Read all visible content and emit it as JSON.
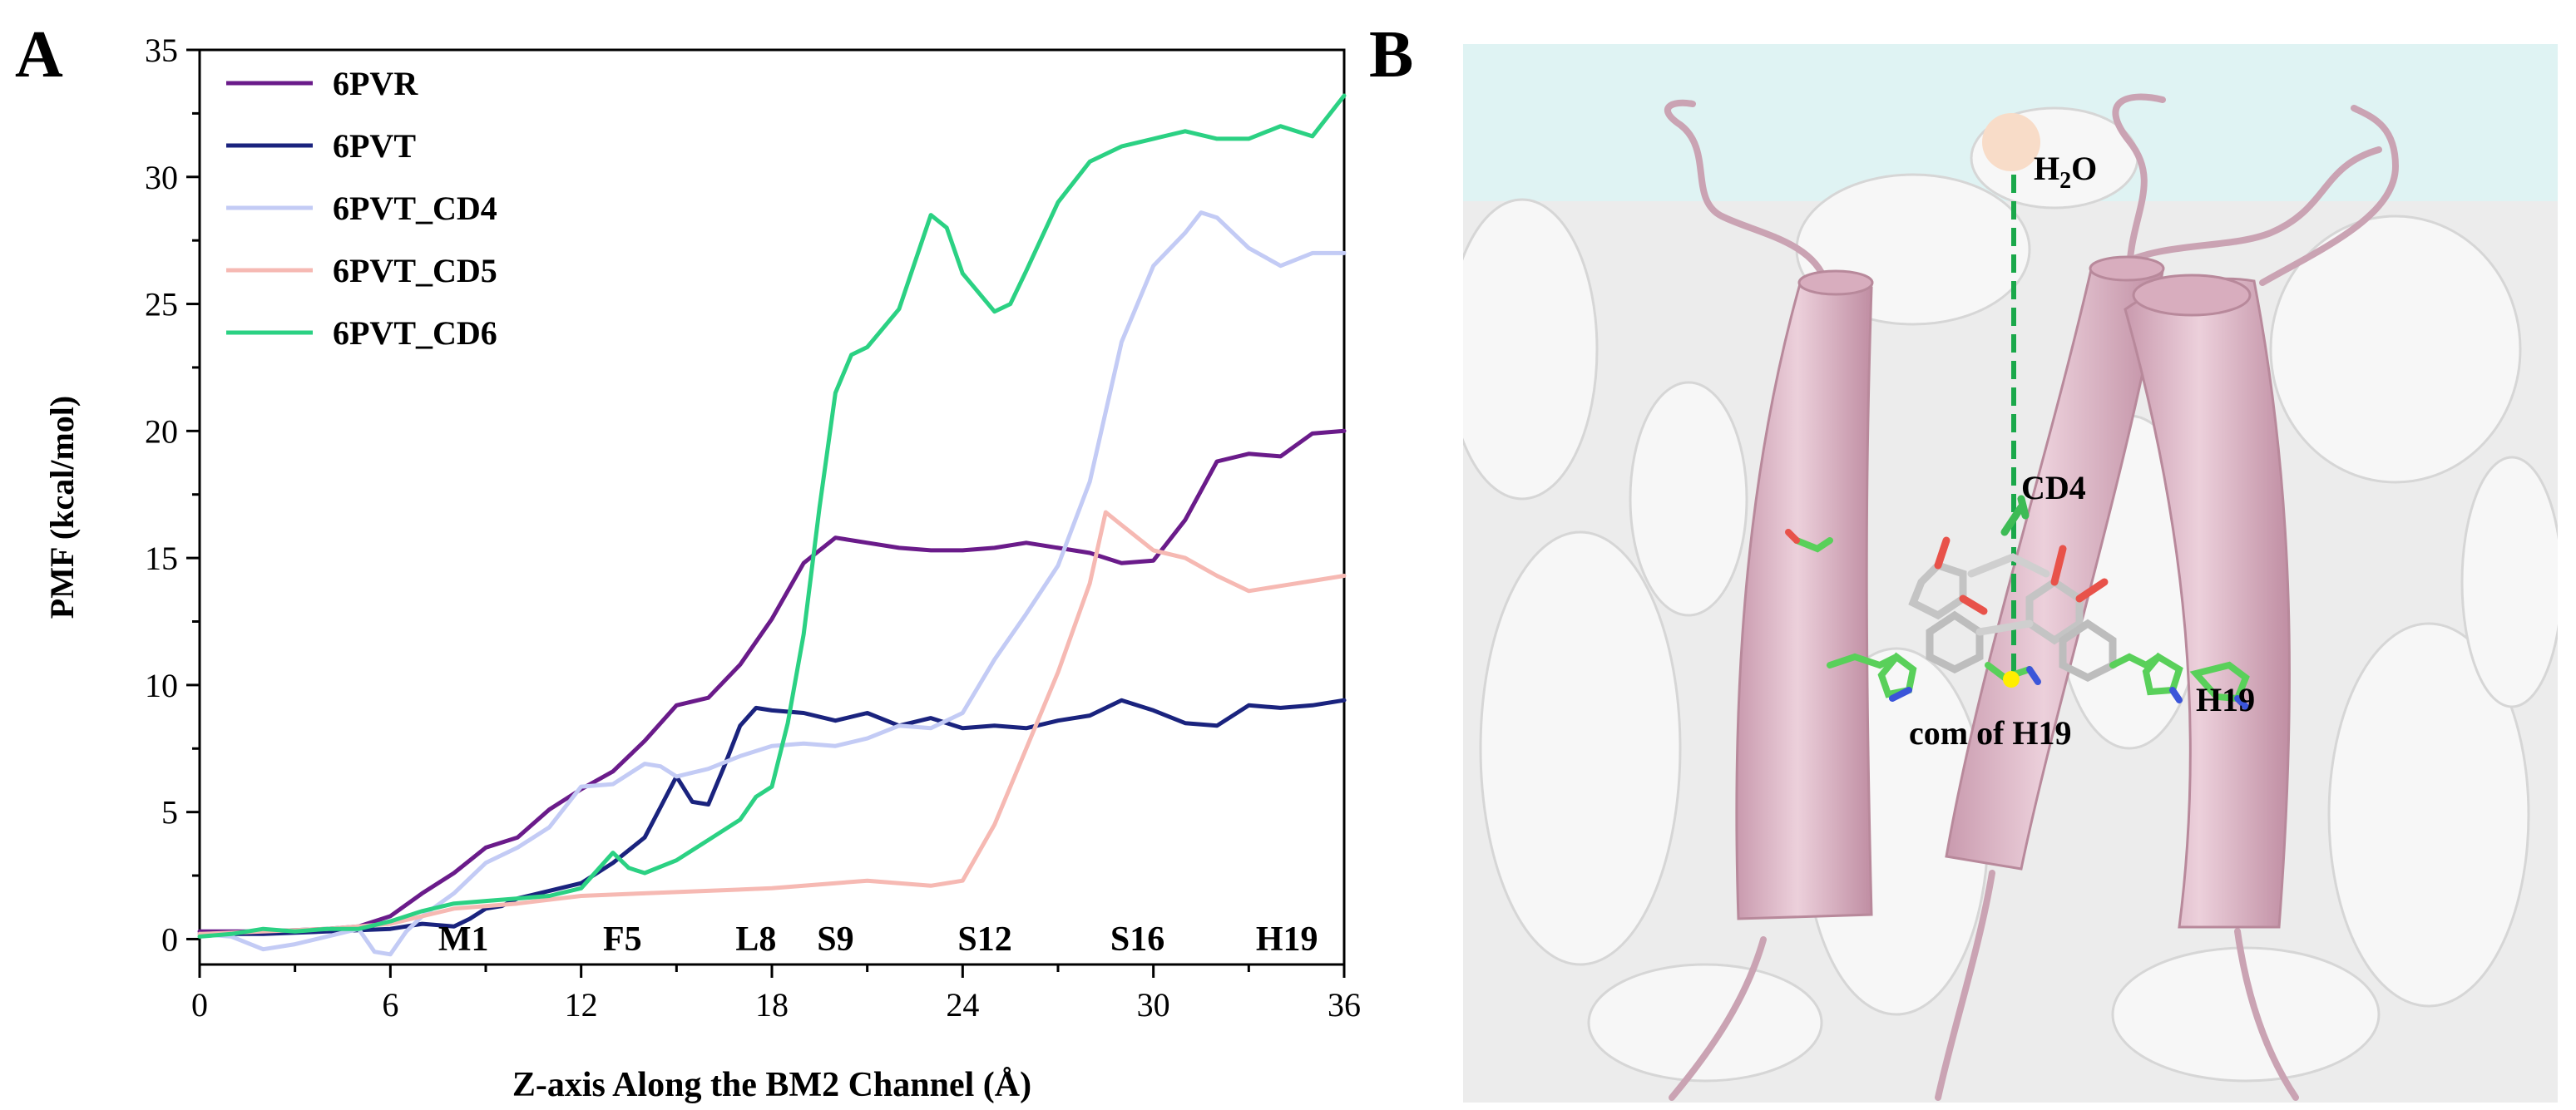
{
  "panel_a": {
    "label": "A"
  },
  "panel_b": {
    "label": "B",
    "labels": {
      "water": "H",
      "water_sub": "2",
      "water_tail": "O",
      "cd4": "CD4",
      "com": "com of H19",
      "h19": "H19"
    },
    "colors": {
      "water_bg": "#dff5f5",
      "surface": "#eeeeee",
      "helix": "#e2bccb",
      "helix_edge": "#b8899b",
      "dash": "#1aa84a",
      "water_ball": "#f8dcc8",
      "stick_c": "#bdbdbd",
      "stick_o": "#e8524a",
      "stick_n": "#3b55d9",
      "stick_h": "#59d05a",
      "com_dot": "#ffee00"
    }
  },
  "chart_data": {
    "type": "line",
    "xlabel": "Z-axis Along the BM2 Channel (Å)",
    "ylabel": "PMF (kcal/mol)",
    "xlim": [
      0,
      36
    ],
    "ylim": [
      -1,
      35
    ],
    "xticks": [
      0,
      6,
      12,
      18,
      24,
      30,
      36
    ],
    "yticks": [
      0,
      5,
      10,
      15,
      20,
      25,
      30,
      35
    ],
    "residue_labels": [
      {
        "text": "M1",
        "x": 8.3
      },
      {
        "text": "F5",
        "x": 13.3
      },
      {
        "text": "L8",
        "x": 17.5
      },
      {
        "text": "S9",
        "x": 20.0
      },
      {
        "text": "S12",
        "x": 24.7
      },
      {
        "text": "S16",
        "x": 29.5
      },
      {
        "text": "H19",
        "x": 34.2
      }
    ],
    "legend_position": "top-left",
    "series": [
      {
        "name": "6PVR",
        "color": "#6a1b8a",
        "x": [
          0,
          2,
          4,
          5,
          6,
          7,
          8,
          9,
          10,
          11,
          12,
          13,
          14,
          15,
          16,
          17,
          18,
          19,
          20,
          21,
          22,
          23,
          24,
          25,
          26,
          27,
          28,
          29,
          30,
          31,
          32,
          33,
          34,
          35,
          36
        ],
        "y": [
          0.3,
          0.3,
          0.4,
          0.5,
          0.9,
          1.8,
          2.6,
          3.6,
          4.0,
          5.1,
          5.9,
          6.6,
          7.8,
          9.2,
          9.5,
          10.8,
          12.6,
          14.8,
          15.8,
          15.6,
          15.4,
          15.3,
          15.3,
          15.4,
          15.6,
          15.4,
          15.2,
          14.8,
          14.9,
          16.5,
          18.8,
          19.1,
          19.0,
          19.9,
          20.0
        ]
      },
      {
        "name": "6PVT",
        "color": "#1a237e",
        "x": [
          0,
          2,
          4,
          6,
          7,
          8,
          8.5,
          9,
          9.5,
          10,
          11,
          12,
          13,
          14,
          14.5,
          15,
          15.5,
          16,
          16.5,
          17,
          17.5,
          18,
          19,
          20,
          21,
          22,
          23,
          24,
          25,
          26,
          27,
          28,
          29,
          30,
          31,
          32,
          33,
          34,
          35,
          36
        ],
        "y": [
          0.2,
          0.2,
          0.3,
          0.4,
          0.6,
          0.5,
          0.8,
          1.2,
          1.3,
          1.6,
          1.9,
          2.2,
          3.0,
          4.0,
          5.2,
          6.4,
          5.4,
          5.3,
          6.8,
          8.4,
          9.1,
          9.0,
          8.9,
          8.6,
          8.9,
          8.4,
          8.7,
          8.3,
          8.4,
          8.3,
          8.6,
          8.8,
          9.4,
          9.0,
          8.5,
          8.4,
          9.2,
          9.1,
          9.2,
          9.4
        ]
      },
      {
        "name": "6PVT_CD4",
        "color": "#c3cbf5",
        "x": [
          0,
          1,
          2,
          3,
          4,
          5,
          5.5,
          6,
          6.5,
          7,
          8,
          9,
          10,
          11,
          12,
          13,
          14,
          14.5,
          15,
          16,
          17,
          18,
          19,
          20,
          21,
          22,
          23,
          24,
          25,
          26,
          27,
          28,
          29,
          30,
          31,
          31.5,
          32,
          33,
          34,
          35,
          36
        ],
        "y": [
          0.2,
          0.1,
          -0.4,
          -0.2,
          0.1,
          0.4,
          -0.5,
          -0.6,
          0.3,
          0.9,
          1.8,
          3.0,
          3.6,
          4.4,
          6.0,
          6.1,
          6.9,
          6.8,
          6.4,
          6.7,
          7.2,
          7.6,
          7.7,
          7.6,
          7.9,
          8.4,
          8.3,
          8.9,
          11.0,
          12.8,
          14.7,
          18.0,
          23.5,
          26.5,
          27.8,
          28.6,
          28.4,
          27.2,
          26.5,
          27.0,
          27.0
        ]
      },
      {
        "name": "6PVT_CD5",
        "color": "#f6b9b3",
        "x": [
          0,
          2,
          4,
          6,
          8,
          10,
          12,
          14,
          16,
          18,
          20,
          21,
          22,
          23,
          24,
          25,
          26,
          27,
          28,
          28.5,
          29,
          30,
          31,
          32,
          33,
          34,
          35,
          36
        ],
        "y": [
          0.2,
          0.3,
          0.4,
          0.6,
          1.2,
          1.4,
          1.7,
          1.8,
          1.9,
          2.0,
          2.2,
          2.3,
          2.2,
          2.1,
          2.3,
          4.5,
          7.5,
          10.5,
          14.0,
          16.8,
          16.3,
          15.3,
          15.0,
          14.3,
          13.7,
          13.9,
          14.1,
          14.3
        ]
      },
      {
        "name": "6PVT_CD6",
        "color": "#2bd183",
        "x": [
          0,
          1,
          2,
          3,
          4,
          5,
          6,
          7,
          8,
          9,
          10,
          11,
          12,
          12.5,
          13,
          13.5,
          14,
          15,
          16,
          17,
          17.5,
          18,
          18.5,
          19,
          19.5,
          20,
          20.5,
          21,
          22,
          23,
          23.5,
          24,
          25,
          25.5,
          26,
          27,
          28,
          29,
          30,
          31,
          32,
          33,
          34,
          35,
          36
        ],
        "y": [
          0.1,
          0.2,
          0.4,
          0.3,
          0.4,
          0.4,
          0.7,
          1.1,
          1.4,
          1.5,
          1.6,
          1.7,
          2.0,
          2.7,
          3.4,
          2.8,
          2.6,
          3.1,
          3.9,
          4.7,
          5.6,
          6.0,
          8.5,
          12.0,
          17.0,
          21.5,
          23.0,
          23.3,
          24.8,
          28.5,
          28.0,
          26.2,
          24.7,
          25.0,
          26.3,
          29.0,
          30.6,
          31.2,
          31.5,
          31.8,
          31.5,
          31.5,
          32.0,
          31.6,
          33.2
        ]
      }
    ]
  }
}
